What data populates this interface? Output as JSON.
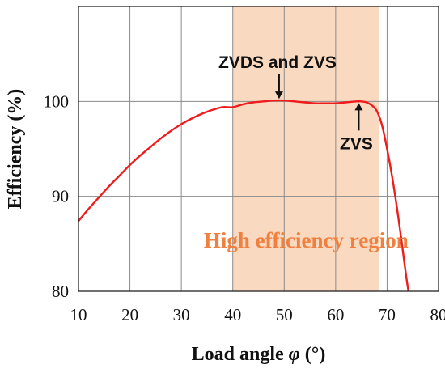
{
  "chart_data": {
    "type": "line",
    "xlabel": "Load angle φ (°)",
    "ylabel": "Efficiency (%)",
    "xlim": [
      10,
      80
    ],
    "ylim": [
      80,
      110
    ],
    "x_ticks": [
      "10",
      "20",
      "30",
      "40",
      "50",
      "60",
      "70",
      "80"
    ],
    "y_ticks": [
      "80",
      "90",
      "100"
    ],
    "grid": true,
    "series": [
      {
        "color": "#ee1c1c",
        "x": [
          10,
          12,
          14,
          16,
          18,
          20,
          22,
          24,
          26,
          28,
          30,
          32,
          34,
          36,
          38,
          40,
          42,
          44,
          46,
          48,
          50,
          52,
          54,
          56,
          58,
          60,
          62,
          64,
          65,
          66,
          67,
          68,
          69,
          70,
          71,
          72,
          73,
          74,
          75
        ],
        "values": [
          87.4,
          88.7,
          89.9,
          91.1,
          92.2,
          93.3,
          94.3,
          95.2,
          96.1,
          96.9,
          97.6,
          98.2,
          98.7,
          99.1,
          99.4,
          99.4,
          99.7,
          99.9,
          100.0,
          100.1,
          100.1,
          100.0,
          99.9,
          99.8,
          99.8,
          99.8,
          99.9,
          100.0,
          100.0,
          99.9,
          99.6,
          99.0,
          97.5,
          95.0,
          92.0,
          88.5,
          84.5,
          80.5,
          77.5
        ]
      }
    ],
    "shaded_region": {
      "x_range": [
        40,
        68.5
      ],
      "color": "#f9d9c0",
      "label": "High efficiency region",
      "label_color": "#f08040"
    },
    "annotations": [
      {
        "text": "ZVDS and ZVS",
        "x": 49,
        "y": 100.1
      },
      {
        "text": "ZVS",
        "x": 64.5,
        "y": 100.0
      }
    ]
  }
}
